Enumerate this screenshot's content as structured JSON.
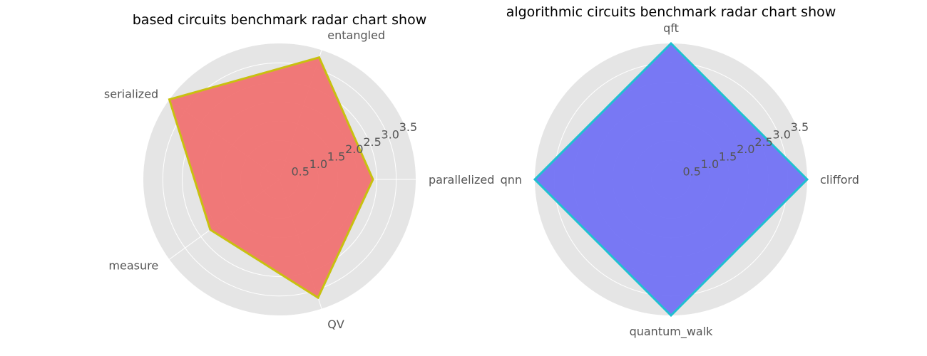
{
  "chart_data": [
    {
      "type": "radar",
      "title": "based circuits benchmark radar chart show",
      "categories": [
        "parallelized",
        "entangled",
        "serialized",
        "measure",
        "QV"
      ],
      "values": [
        2.4,
        3.3,
        3.5,
        2.2,
        3.2
      ],
      "rlim": [
        0,
        3.5
      ],
      "ticks": [
        0.5,
        1.0,
        1.5,
        2.0,
        2.5,
        3.0,
        3.5
      ],
      "tick_labels": [
        "0.5",
        "1.0",
        "1.5",
        "2.0",
        "2.5",
        "3.0",
        "3.5"
      ],
      "fill_color": "#f07272",
      "line_color": "#c8c010",
      "grid": true
    },
    {
      "type": "radar",
      "title": "algorithmic circuits benchmark radar chart show",
      "categories": [
        "clifford",
        "qft",
        "qnn",
        "quantum_walk"
      ],
      "values": [
        3.5,
        3.5,
        3.5,
        3.5
      ],
      "rlim": [
        0,
        3.5
      ],
      "ticks": [
        0.5,
        1.0,
        1.5,
        2.0,
        2.5,
        3.0,
        3.5
      ],
      "tick_labels": [
        "0.5",
        "1.0",
        "1.5",
        "2.0",
        "2.5",
        "3.0",
        "3.5"
      ],
      "fill_color": "#7272f4",
      "line_color": "#20c0d0",
      "grid": true
    }
  ],
  "colors": {
    "panel_bg": "#e5e5e5",
    "grid": "#ffffff"
  }
}
